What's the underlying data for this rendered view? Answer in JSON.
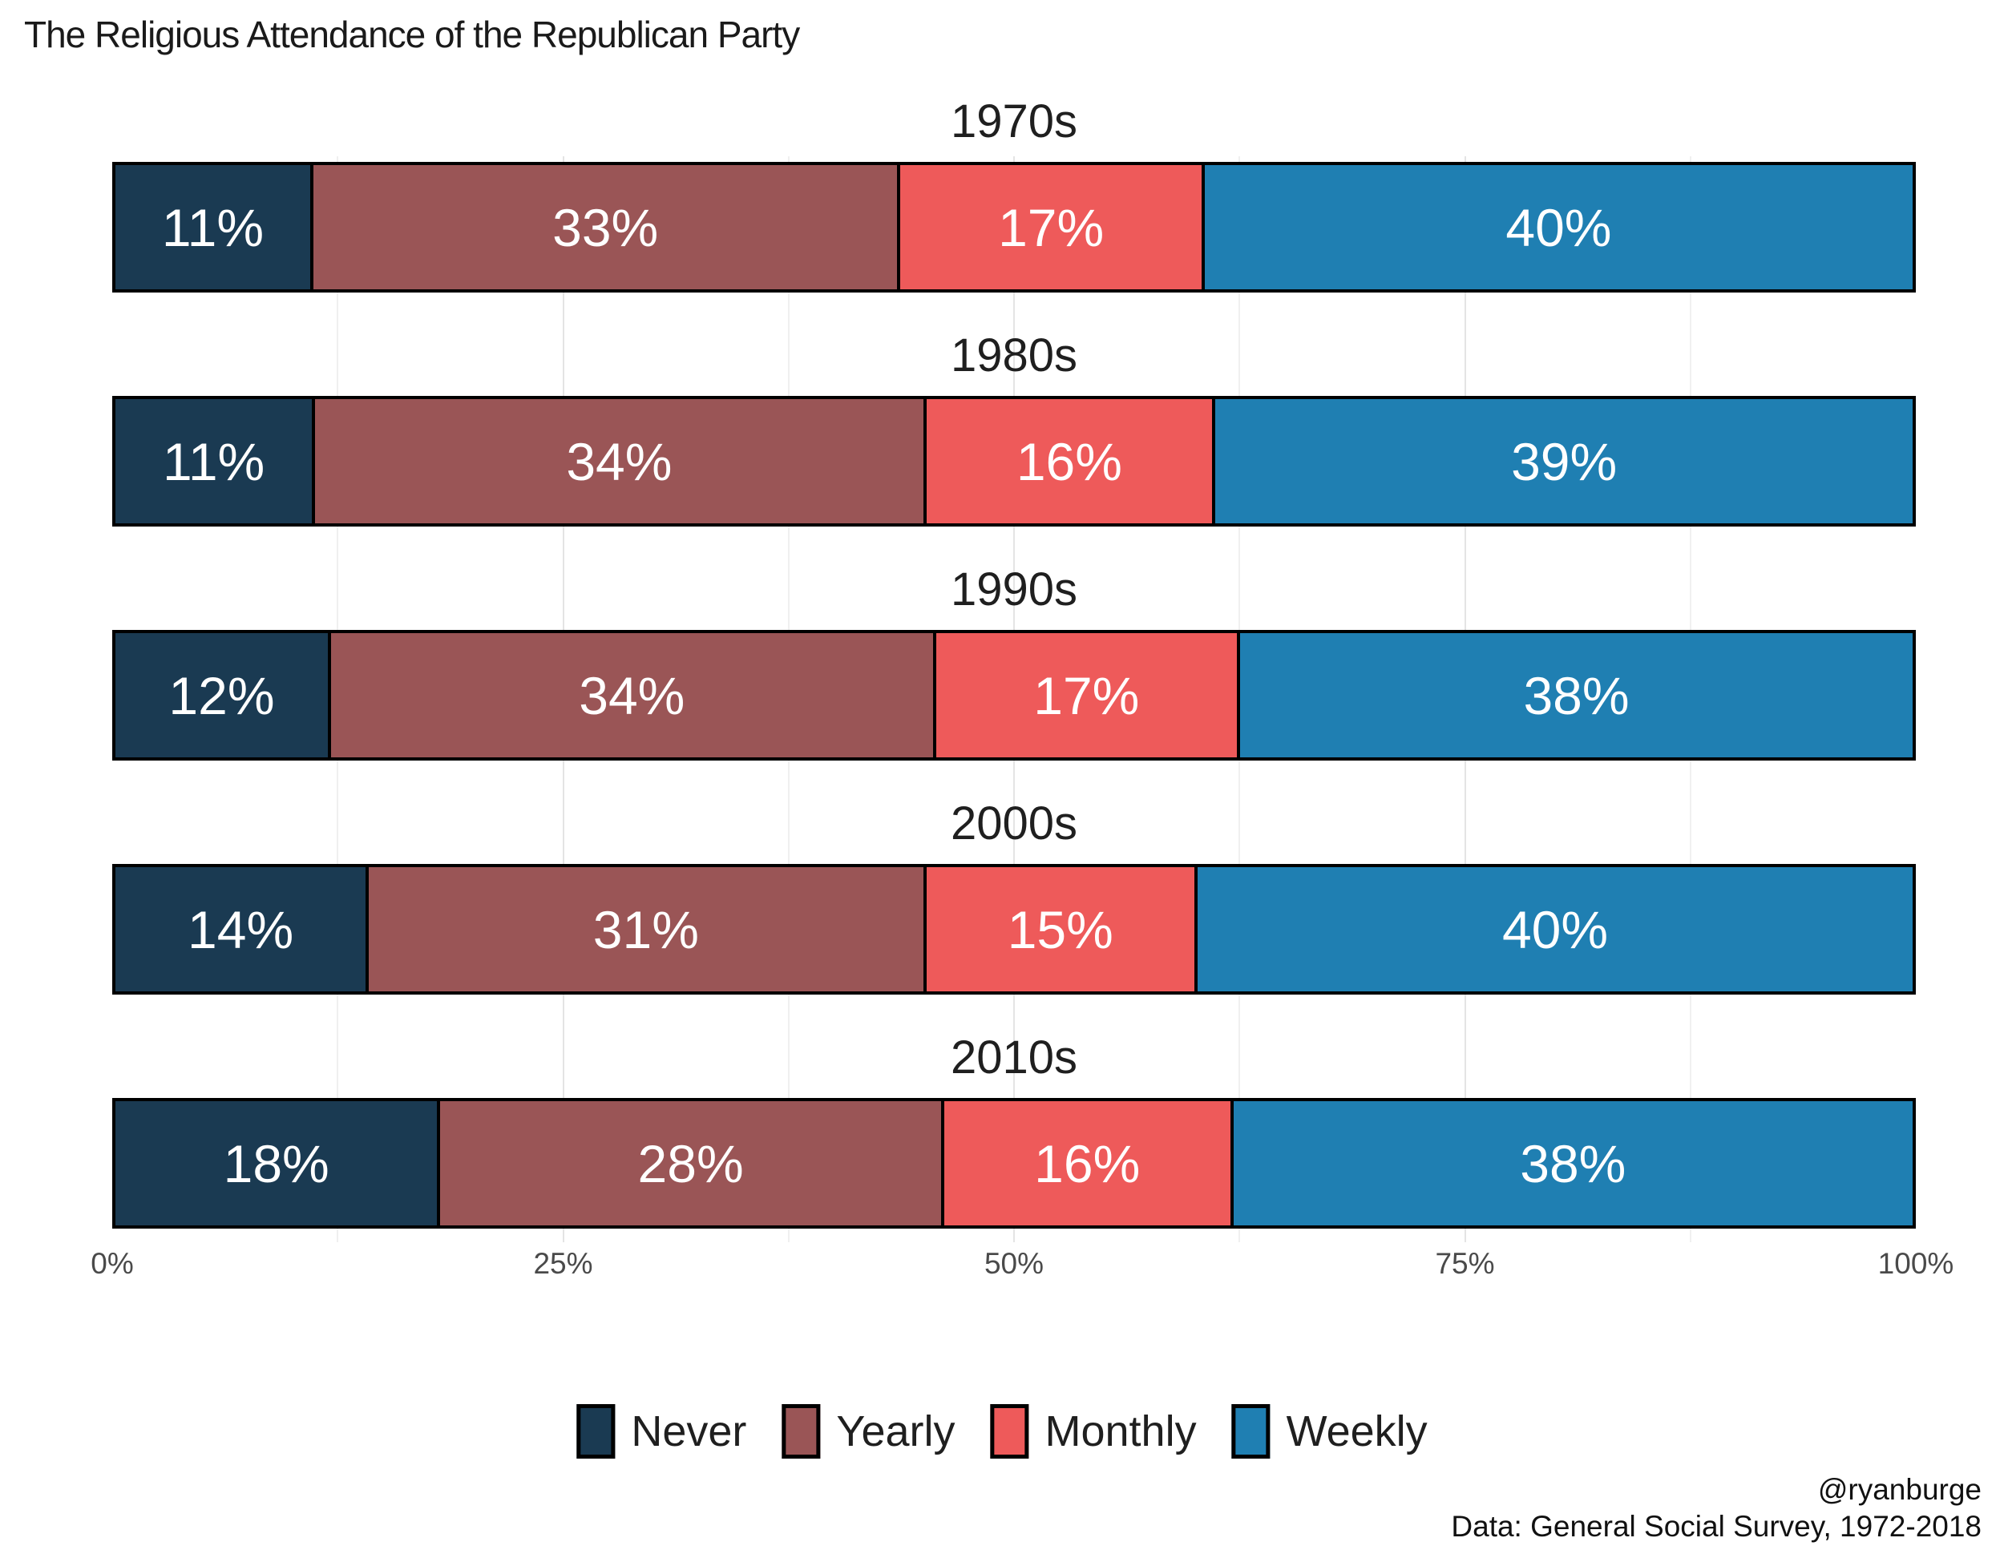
{
  "title": "The Religious Attendance of the Republican Party",
  "attribution": {
    "handle": "@ryanburge",
    "source": "Data: General Social Survey, 1972-2018"
  },
  "axis": {
    "ticks": [
      {
        "label": "0%",
        "position": 0
      },
      {
        "label": "25%",
        "position": 25
      },
      {
        "label": "50%",
        "position": 50
      },
      {
        "label": "75%",
        "position": 75
      },
      {
        "label": "100%",
        "position": 100
      }
    ],
    "minor_gridlines": [
      12.5,
      37.5,
      62.5,
      87.5
    ],
    "major_gridlines": [
      25,
      50,
      75
    ]
  },
  "legend": {
    "items": [
      {
        "label": "Never",
        "color": "#1a3a52"
      },
      {
        "label": "Yearly",
        "color": "#9a5556"
      },
      {
        "label": "Monthly",
        "color": "#ee5a5a"
      },
      {
        "label": "Weekly",
        "color": "#1f7fb2"
      }
    ]
  },
  "chart_data": {
    "type": "bar",
    "stacked": true,
    "orientation": "horizontal",
    "title": "The Religious Attendance of the Republican Party",
    "categories": [
      "1970s",
      "1980s",
      "1990s",
      "2000s",
      "2010s"
    ],
    "series": [
      {
        "name": "Never",
        "color": "#1a3a52",
        "values": [
          11,
          11,
          12,
          14,
          18
        ]
      },
      {
        "name": "Yearly",
        "color": "#9a5556",
        "values": [
          33,
          34,
          34,
          31,
          28
        ]
      },
      {
        "name": "Monthly",
        "color": "#ee5a5a",
        "values": [
          17,
          16,
          17,
          15,
          16
        ]
      },
      {
        "name": "Weekly",
        "color": "#1f7fb2",
        "values": [
          40,
          39,
          38,
          40,
          38
        ]
      }
    ],
    "value_suffix": "%",
    "xlim": [
      0,
      100
    ],
    "x_ticks": [
      "0%",
      "25%",
      "50%",
      "75%",
      "100%"
    ],
    "legend_position": "bottom",
    "grid": "vertical-faint"
  },
  "layout": {
    "bar_tops": [
      205,
      497,
      789,
      1081,
      1373
    ],
    "label_offset": 95
  }
}
